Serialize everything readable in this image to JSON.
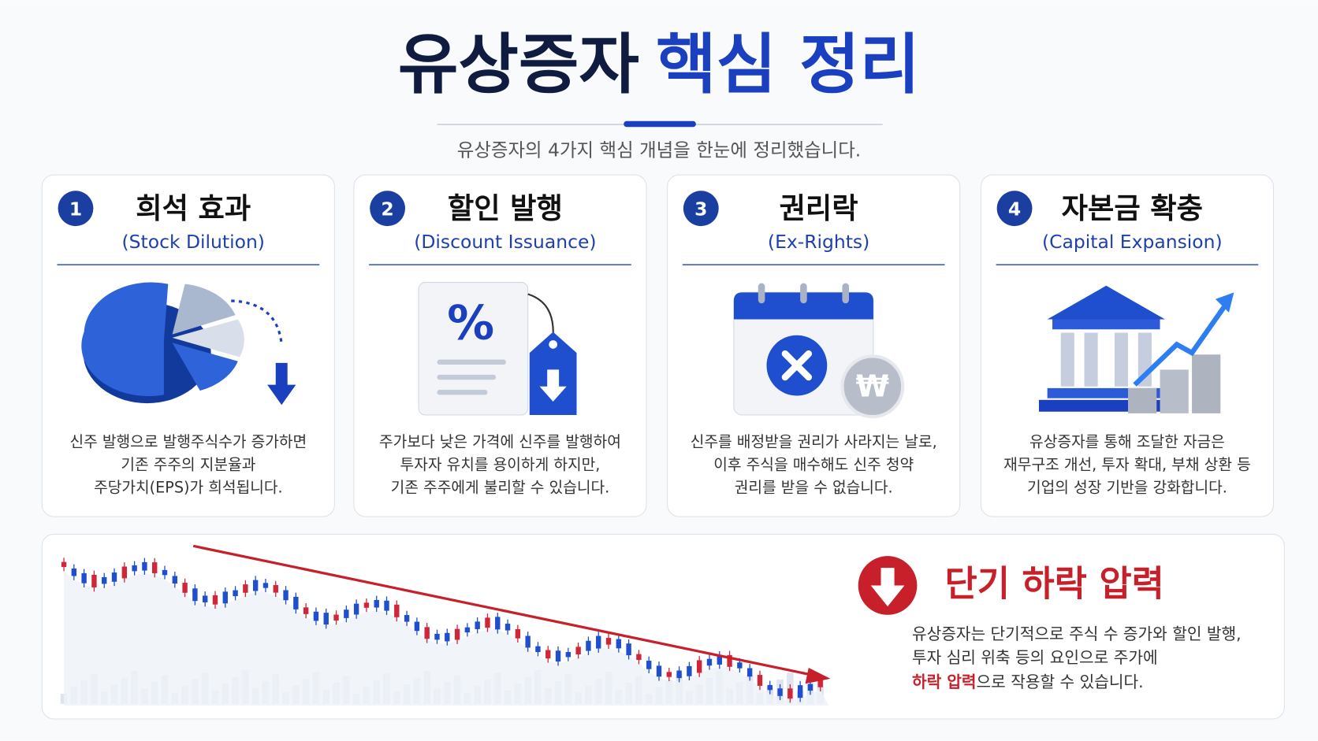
{
  "header": {
    "title_dark": "유상증자",
    "title_blue": "핵심 정리",
    "subtitle": "유상증자의 4가지 핵심 개념을 한눈에 정리했습니다."
  },
  "cards": [
    {
      "number": "1",
      "title": "희석 효과",
      "subtitle": "(Stock Dilution)",
      "description": [
        "신주 발행으로 발행주식수가 증가하면",
        "기존 주주의 지분율과",
        "주당가치(EPS)가 희석됩니다."
      ]
    },
    {
      "number": "2",
      "title": "할인 발행",
      "subtitle": "(Discount Issuance)",
      "icon_text": "%",
      "description": [
        "주가보다 낮은 가격에 신주를 발행하여",
        "투자자 유치를 용이하게 하지만,",
        "기존 주주에게 불리할 수 있습니다."
      ]
    },
    {
      "number": "3",
      "title": "권리락",
      "subtitle": "(Ex-Rights)",
      "icon_text": "₩",
      "description": [
        "신주를 배정받을 권리가 사라지는 날로,",
        "이후 주식을 매수해도 신주 청약",
        "권리를 받을 수 없습니다."
      ]
    },
    {
      "number": "4",
      "title": "자본금 확충",
      "subtitle": "(Capital Expansion)",
      "description": [
        "유상증자를 통해 조달한 자금은",
        "재무구조 개선, 투자 확대, 부채 상환 등",
        "기업의 성장 기반을 강화합니다."
      ]
    }
  ],
  "summary": {
    "title": "단기 하락 압력",
    "description": [
      "유상증자는 단기적으로 주식 수 증가와 할인 발행,",
      "투자 심리 위축 등의 요인으로 주가에"
    ],
    "highlight": "하락 압력",
    "description_end": "으로 작용할 수 있습니다."
  }
}
